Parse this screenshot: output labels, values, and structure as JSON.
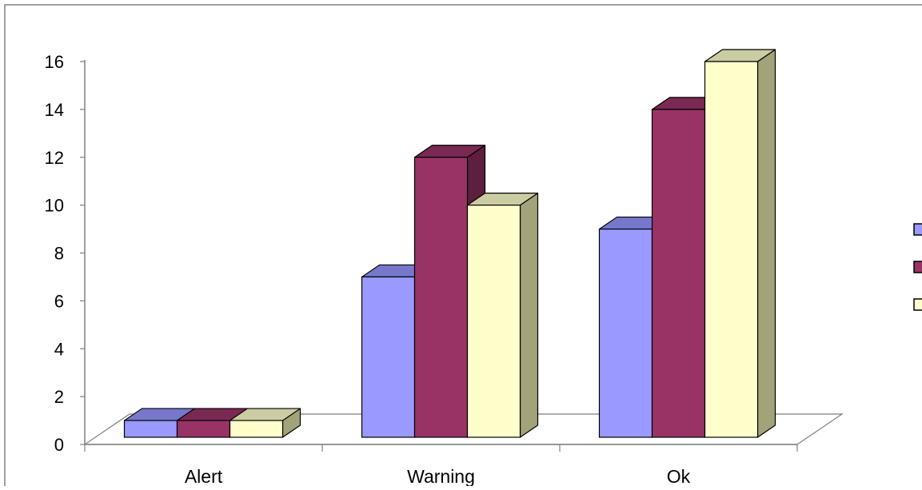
{
  "chart_data": {
    "type": "bar",
    "style": "3d-clustered-column",
    "categories": [
      "Alert",
      "Warning",
      "Ok"
    ],
    "series": [
      {
        "values": [
          1,
          7,
          9
        ]
      },
      {
        "values": [
          1,
          12,
          14
        ]
      },
      {
        "values": [
          1,
          10,
          16
        ]
      }
    ],
    "ylim": [
      0,
      16
    ],
    "yticks": [
      "0",
      "2",
      "4",
      "6",
      "8",
      "10",
      "12",
      "14",
      "16"
    ],
    "grid": false,
    "legend": "right",
    "colors": {
      "series_front": [
        "#9999ff",
        "#993366",
        "#ffffcc"
      ],
      "series_top": [
        "#7777cc",
        "#7a2952",
        "#cccca3"
      ],
      "series_side": [
        "#5c5c99",
        "#5c1f3d",
        "#a3a37a"
      ],
      "frame": "#808080",
      "axis": "#808080",
      "outline": "#000000"
    }
  }
}
